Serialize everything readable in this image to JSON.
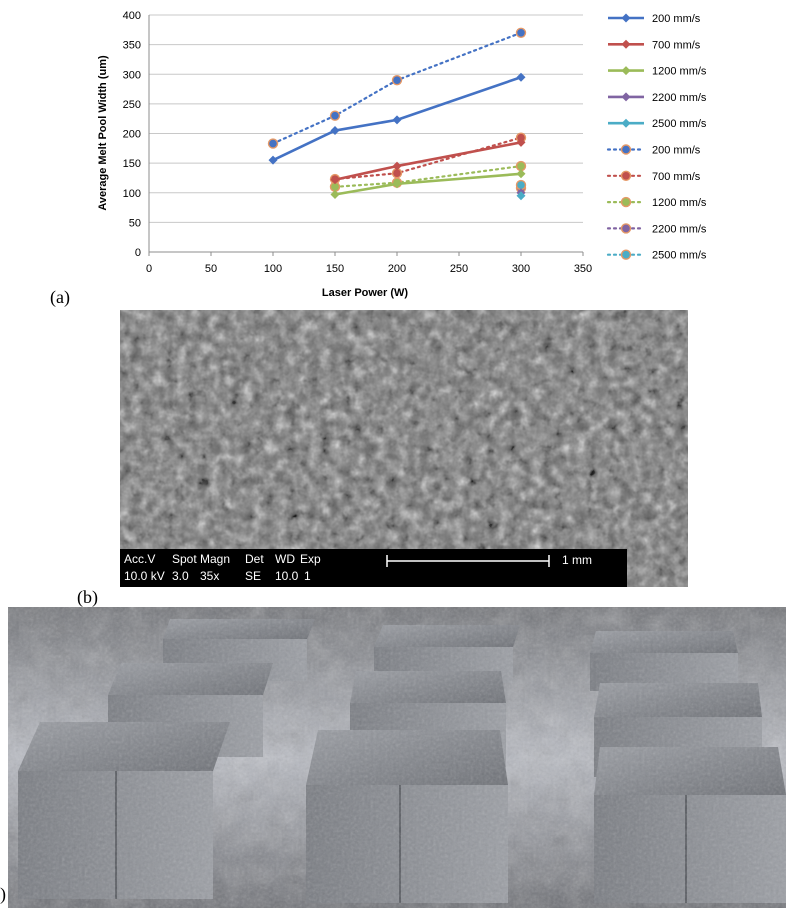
{
  "chart_data": {
    "type": "line",
    "title": "",
    "xlabel": "Laser Power (W)",
    "ylabel": "Average Melt Pool Width (um)",
    "xlim": [
      0,
      350
    ],
    "ylim": [
      0,
      400
    ],
    "xticks": [
      0,
      50,
      100,
      150,
      200,
      250,
      300,
      350
    ],
    "yticks": [
      0,
      50,
      100,
      150,
      200,
      250,
      300,
      350,
      400
    ],
    "grid": "horizontal",
    "legend_position": "right",
    "series": [
      {
        "name": "200 mm/s",
        "style": "solid",
        "marker": "diamond",
        "color": "#4472C4",
        "x": [
          100,
          150,
          200,
          300
        ],
        "y": [
          155,
          205,
          223,
          295
        ]
      },
      {
        "name": "700 mm/s",
        "style": "solid",
        "marker": "diamond",
        "color": "#C0504D",
        "x": [
          150,
          200,
          300
        ],
        "y": [
          122,
          145,
          185
        ]
      },
      {
        "name": "1200 mm/s",
        "style": "solid",
        "marker": "diamond",
        "color": "#9BBB59",
        "x": [
          150,
          200,
          300
        ],
        "y": [
          97,
          115,
          132
        ]
      },
      {
        "name": "2200 mm/s",
        "style": "solid",
        "marker": "diamond",
        "color": "#8064A2",
        "x": [
          300
        ],
        "y": [
          100
        ]
      },
      {
        "name": "2500 mm/s",
        "style": "solid",
        "marker": "diamond",
        "color": "#4BACC6",
        "x": [
          300
        ],
        "y": [
          95
        ]
      },
      {
        "name": "200 mm/s",
        "style": "dotted",
        "marker": "circle",
        "color": "#4472C4",
        "x": [
          100,
          150,
          200,
          300
        ],
        "y": [
          183,
          230,
          290,
          370
        ]
      },
      {
        "name": "700 mm/s",
        "style": "dotted",
        "marker": "circle",
        "color": "#C0504D",
        "x": [
          150,
          200,
          300
        ],
        "y": [
          123,
          133,
          193
        ]
      },
      {
        "name": "1200 mm/s",
        "style": "dotted",
        "marker": "circle",
        "color": "#9BBB59",
        "x": [
          150,
          200,
          300
        ],
        "y": [
          110,
          117,
          145
        ]
      },
      {
        "name": "2200 mm/s",
        "style": "dotted",
        "marker": "circle",
        "color": "#8064A2",
        "x": [
          300
        ],
        "y": [
          108
        ]
      },
      {
        "name": "2500 mm/s",
        "style": "dotted",
        "marker": "circle",
        "color": "#4BACC6",
        "x": [
          300
        ],
        "y": [
          113
        ]
      }
    ]
  },
  "labels": {
    "a": "(a)",
    "b": "(b)",
    "c": ")"
  },
  "sem": {
    "accv": "Acc.V",
    "spot": "Spot",
    "magn": "Magn",
    "det": "Det",
    "wd": "WD",
    "exp": "Exp",
    "accv_val": "10.0 kV",
    "spot_val": "3.0",
    "magn_val": "35x",
    "det_val": "SE",
    "wd_val": "10.0",
    "exp_val": "1",
    "scale": "1 mm"
  }
}
